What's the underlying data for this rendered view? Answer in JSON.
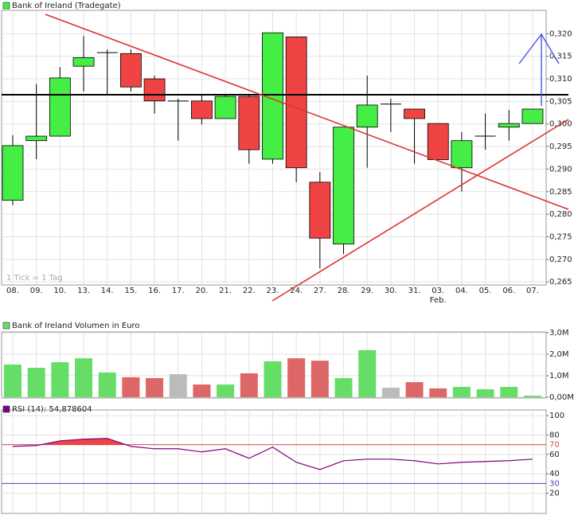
{
  "chart_data": [
    {
      "type": "candlestick",
      "series": [
        {
          "name": "Bank of Ireland (Tradegate)",
          "color": "#44ee44",
          "down_color": "#f04444",
          "open": [
            0.2831,
            0.2963,
            0.2973,
            0.3128,
            0.3158,
            0.3156,
            0.31,
            0.3051,
            0.3051,
            0.3012,
            0.3061,
            0.2922,
            0.3193,
            0.2871,
            0.2734,
            0.2993,
            0.3044,
            0.3033,
            0.3001,
            0.2903,
            0.2973,
            0.2993,
            0.3001
          ],
          "high": [
            0.2975,
            0.3089,
            0.3126,
            0.3195,
            0.3165,
            0.3165,
            0.3107,
            0.3056,
            0.3063,
            0.3066,
            0.3066,
            0.3202,
            0.3193,
            0.2893,
            0.2993,
            0.3107,
            0.3056,
            0.3033,
            0.3001,
            0.2982,
            0.3023,
            0.3031,
            0.3033
          ],
          "low": [
            0.282,
            0.2922,
            0.2973,
            0.3072,
            0.3063,
            0.3072,
            0.3023,
            0.2963,
            0.2999,
            0.3012,
            0.2912,
            0.2912,
            0.2871,
            0.268,
            0.2712,
            0.2903,
            0.2982,
            0.2912,
            0.2921,
            0.285,
            0.2943,
            0.2963,
            0.3001
          ],
          "close": [
            0.2952,
            0.2973,
            0.3102,
            0.3147,
            0.3158,
            0.3082,
            0.3051,
            0.3051,
            0.3012,
            0.3061,
            0.2943,
            0.3202,
            0.2903,
            0.2747,
            0.2993,
            0.3042,
            0.3044,
            0.3012,
            0.2921,
            0.2963,
            0.2973,
            0.3001,
            0.3033
          ]
        }
      ],
      "categories": [
        "08.",
        "09.",
        "10.",
        "13.",
        "14.",
        "15.",
        "16.",
        "17.",
        "20.",
        "21.",
        "22.",
        "23.",
        "24.",
        "27.",
        "28.",
        "29.",
        "30.",
        "31.",
        "03.",
        "04.",
        "05.",
        "06.",
        "07."
      ],
      "month_label": "Feb.",
      "note": "1 Tick = 1 Tag",
      "ylim": [
        0.2645,
        0.325
      ],
      "yticks": [
        {
          "value": 0.265,
          "label": "0,265"
        },
        {
          "value": 0.27,
          "label": "0,270"
        },
        {
          "value": 0.275,
          "label": "0,275"
        },
        {
          "value": 0.28,
          "label": "0,280"
        },
        {
          "value": 0.285,
          "label": "0,285"
        },
        {
          "value": 0.29,
          "label": "0,290"
        },
        {
          "value": 0.295,
          "label": "0,295"
        },
        {
          "value": 0.3,
          "label": "0,300"
        },
        {
          "value": 0.305,
          "label": "0,305"
        },
        {
          "value": 0.31,
          "label": "0,310"
        },
        {
          "value": 0.315,
          "label": "0,315"
        },
        {
          "value": 0.32,
          "label": "0,320"
        }
      ],
      "grid": true
    },
    {
      "type": "bar",
      "series": [
        {
          "name": "Bank of Ireland Volumen in Euro",
          "color": "#66dd66",
          "values": [
            1.52,
            1.37,
            1.63,
            1.81,
            1.15,
            0.93,
            0.89,
            1.07,
            0.59,
            0.59,
            1.11,
            1.67,
            1.81,
            1.7,
            0.89,
            2.19,
            0.44,
            0.7,
            0.41,
            0.48,
            0.37,
            0.48,
            0.07
          ],
          "colors": [
            "#66dd66",
            "#66dd66",
            "#66dd66",
            "#66dd66",
            "#66dd66",
            "#dd6666",
            "#dd6666",
            "#bbbbbb",
            "#dd6666",
            "#66dd66",
            "#dd6666",
            "#66dd66",
            "#dd6666",
            "#dd6666",
            "#66dd66",
            "#66dd66",
            "#bbbbbb",
            "#dd6666",
            "#dd6666",
            "#66dd66",
            "#66dd66",
            "#66dd66",
            "#66dd66"
          ]
        }
      ],
      "ylim": [
        0,
        3
      ],
      "yticks": [
        {
          "value": 0,
          "label": "0,00M"
        },
        {
          "value": 1,
          "label": "1,0M"
        },
        {
          "value": 2,
          "label": "2,0M"
        },
        {
          "value": 3,
          "label": "3,0M"
        }
      ],
      "grid": true
    },
    {
      "type": "line",
      "series": [
        {
          "name": "RSI (14): 54,878604",
          "color": "#800080",
          "values": [
            68.3,
            69.1,
            74,
            75.7,
            76.5,
            68.3,
            65.8,
            65.8,
            62.6,
            65.8,
            56,
            67.5,
            51.9,
            44.4,
            53.5,
            55.1,
            55.1,
            53.5,
            50.2,
            51.9,
            52.7,
            53.5,
            55.1
          ]
        }
      ],
      "ylim": [
        0,
        105
      ],
      "yticks": [
        20,
        40,
        60,
        80,
        100
      ],
      "reference_lines": [
        {
          "value": 70,
          "color": "#dd4444"
        },
        {
          "value": 30,
          "color": "#4444cc"
        }
      ],
      "fill_above": {
        "value": 70,
        "color": "#ee4444"
      },
      "grid": true
    }
  ]
}
